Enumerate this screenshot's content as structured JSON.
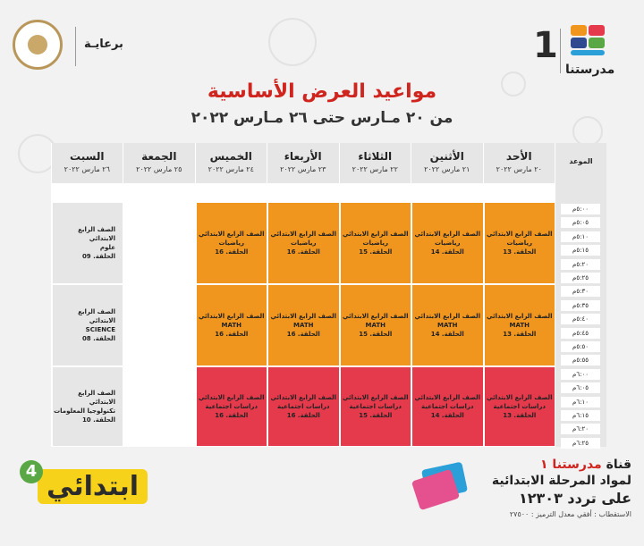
{
  "header": {
    "brand_number": "1",
    "brand_name": "مدرستنا",
    "sponsor_label": "برعايـة",
    "title": "مواعيد العرض الأساسية",
    "subtitle": "من ٢٠ مـارس حتى ٢٦ مـارس ٢٠٢٢"
  },
  "schedule": {
    "time_header": "الموعد",
    "days": [
      {
        "name": "الأحد",
        "date": "٢٠ مارس ٢٠٢٢"
      },
      {
        "name": "الأثنين",
        "date": "٢١ مارس ٢٠٢٢"
      },
      {
        "name": "الثلاثاء",
        "date": "٢٢ مارس ٢٠٢٢"
      },
      {
        "name": "الأربعاء",
        "date": "٢٣ مارس ٢٠٢٢"
      },
      {
        "name": "الخميس",
        "date": "٢٤ مارس ٢٠٢٢"
      },
      {
        "name": "الجمعة",
        "date": "٢٥ مارس ٢٠٢٢"
      },
      {
        "name": "السبت",
        "date": "٢٦ مارس ٢٠٢٢"
      }
    ],
    "slots": [
      "٥:٠٠م",
      "٥:٠٥م",
      "٥:١٠م",
      "٥:١٥م",
      "٥:٢٠م",
      "٥:٢٥م",
      "٥:٣٠م",
      "٥:٣٥م",
      "٥:٤٠م",
      "٥:٤٥م",
      "٥:٥٠م",
      "٥:٥٥م",
      "٦:٠٠م",
      "٦:٠٥م",
      "٦:١٠م",
      "٦:١٥م",
      "٦:٢٠م",
      "٦:٢٥م"
    ],
    "blocks": [
      {
        "cells": [
          {
            "l1": "الصف الرابع الابتدائي",
            "l2": "رياضيات",
            "l3": "الحلقة. 13"
          },
          {
            "l1": "الصف الرابع الابتدائي",
            "l2": "رياضيات",
            "l3": "الحلقة. 14"
          },
          {
            "l1": "الصف الرابع الابتدائي",
            "l2": "رياضيات",
            "l3": "الحلقة. 15"
          },
          {
            "l1": "الصف الرابع الابتدائي",
            "l2": "رياضيات",
            "l3": "الحلقة. 16"
          },
          {
            "l1": "الصف الرابع الابتدائي",
            "l2": "رياضيات",
            "l3": "الحلقة. 16"
          },
          {
            "l1": "",
            "l2": "",
            "l3": ""
          },
          {
            "l1": "الصف الرابع الابتدائي",
            "l2": "علوم",
            "l3": "الحلقة. 09"
          }
        ]
      },
      {
        "cells": [
          {
            "l1": "الصف الرابع الابتدائي",
            "l2": "MATH",
            "l3": "الحلقة. 13"
          },
          {
            "l1": "الصف الرابع الابتدائي",
            "l2": "MATH",
            "l3": "الحلقة. 14"
          },
          {
            "l1": "الصف الرابع الابتدائي",
            "l2": "MATH",
            "l3": "الحلقة. 15"
          },
          {
            "l1": "الصف الرابع الابتدائي",
            "l2": "MATH",
            "l3": "الحلقة. 16"
          },
          {
            "l1": "الصف الرابع الابتدائي",
            "l2": "MATH",
            "l3": "الحلقة. 16"
          },
          {
            "l1": "",
            "l2": "",
            "l3": ""
          },
          {
            "l1": "الصف الرابع الابتدائي",
            "l2": "SCIENCE",
            "l3": "الحلقة. 08"
          }
        ]
      },
      {
        "cells": [
          {
            "l1": "الصف الرابع الابتدائي",
            "l2": "دراسات اجتماعية",
            "l3": "الحلقة. 13"
          },
          {
            "l1": "الصف الرابع الابتدائي",
            "l2": "دراسات اجتماعية",
            "l3": "الحلقة. 14"
          },
          {
            "l1": "الصف الرابع الابتدائي",
            "l2": "دراسات اجتماعية",
            "l3": "الحلقة. 15"
          },
          {
            "l1": "الصف الرابع الابتدائي",
            "l2": "دراسات اجتماعية",
            "l3": "الحلقة. 16"
          },
          {
            "l1": "الصف الرابع الابتدائي",
            "l2": "دراسات اجتماعية",
            "l3": "الحلقة. 16"
          },
          {
            "l1": "",
            "l2": "",
            "l3": ""
          },
          {
            "l1": "الصف الرابع الابتدائي",
            "l2": "تكنولوجيا المعلومات",
            "l3": "الحلقة. 10"
          }
        ]
      }
    ]
  },
  "footer": {
    "badge_text": "ابتدائي",
    "badge_number": "4",
    "channel_prefix": "قناة",
    "channel_name": "مدرستنا ١",
    "channel_line2": "لمواد المرحلة الابتدائية",
    "channel_line3": "على تردد ١٢٣٠٣",
    "channel_line4": "الاستقطاب : أفقي معدل الترميز : ٢٧٥٠٠"
  },
  "colors": {
    "title_red": "#d0241e",
    "block_orange": "#f0961f",
    "block_red": "#e53a4c",
    "header_gray": "#e6e6e6",
    "badge_yellow": "#f7d21a",
    "badge_green": "#5aa845"
  }
}
